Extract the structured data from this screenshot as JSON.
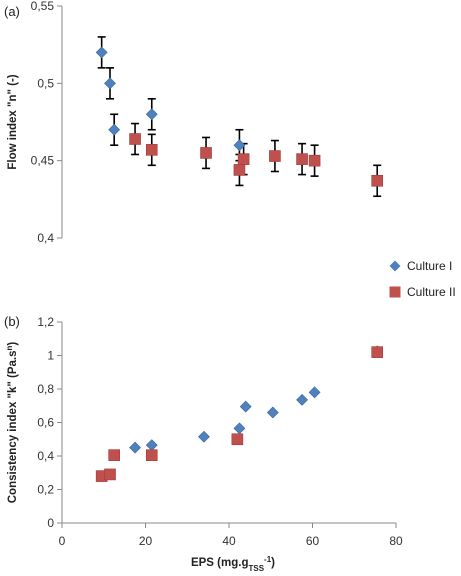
{
  "chart_data": [
    {
      "type": "scatter",
      "panel_label": "(a)",
      "ylabel": "Flow index \"n\" (-)",
      "ylim": [
        0.4,
        0.55
      ],
      "yticks": [
        "0,4",
        "0,45",
        "0,5",
        "0,55"
      ],
      "ytick_values": [
        0.4,
        0.45,
        0.5,
        0.55
      ],
      "xlim": [
        0,
        80
      ],
      "grid": false,
      "error_bars": true,
      "series": [
        {
          "name": "Culture I",
          "color": "#4f81bd",
          "marker": "diamond",
          "points": [
            {
              "x": 9.5,
              "y": 0.52,
              "err": 0.01
            },
            {
              "x": 11.5,
              "y": 0.5,
              "err": 0.01
            },
            {
              "x": 12.5,
              "y": 0.47,
              "err": 0.01
            },
            {
              "x": 21.5,
              "y": 0.48,
              "err": 0.01
            },
            {
              "x": 42.5,
              "y": 0.46,
              "err": 0.01
            }
          ]
        },
        {
          "name": "Culture II",
          "color": "#c0504d",
          "marker": "square",
          "points": [
            {
              "x": 17.5,
              "y": 0.464,
              "err": 0.01
            },
            {
              "x": 21.5,
              "y": 0.457,
              "err": 0.01
            },
            {
              "x": 34.5,
              "y": 0.455,
              "err": 0.01
            },
            {
              "x": 42.5,
              "y": 0.444,
              "err": 0.01
            },
            {
              "x": 43.5,
              "y": 0.451,
              "err": 0.01
            },
            {
              "x": 51.0,
              "y": 0.453,
              "err": 0.01
            },
            {
              "x": 57.5,
              "y": 0.451,
              "err": 0.01
            },
            {
              "x": 60.5,
              "y": 0.45,
              "err": 0.01
            },
            {
              "x": 75.5,
              "y": 0.437,
              "err": 0.01
            }
          ]
        }
      ]
    },
    {
      "type": "scatter",
      "panel_label": "(b)",
      "ylabel": "Consistency index \"k\" (Pa.s",
      "ylabel_sup": "n",
      "ylabel_tail": ")",
      "xlabel": "EPS (mg.g",
      "xlabel_sub": "TSS",
      "xlabel_sup": "-1",
      "xlabel_tail": ")",
      "ylim": [
        0,
        1.2
      ],
      "yticks": [
        "0",
        "0,2",
        "0,4",
        "0,6",
        "0,8",
        "1",
        "1,2"
      ],
      "ytick_values": [
        0,
        0.2,
        0.4,
        0.6,
        0.8,
        1.0,
        1.2
      ],
      "xlim": [
        0,
        80
      ],
      "xticks": [
        "0",
        "20",
        "40",
        "60",
        "80"
      ],
      "xtick_values": [
        0,
        20,
        40,
        60,
        80
      ],
      "grid": false,
      "series": [
        {
          "name": "Culture I",
          "color": "#4f81bd",
          "marker": "diamond",
          "points": [
            {
              "x": 17.5,
              "y": 0.45
            },
            {
              "x": 21.5,
              "y": 0.465
            },
            {
              "x": 34.0,
              "y": 0.515
            },
            {
              "x": 42.5,
              "y": 0.565
            },
            {
              "x": 44.0,
              "y": 0.695
            },
            {
              "x": 50.5,
              "y": 0.66
            },
            {
              "x": 57.5,
              "y": 0.735
            },
            {
              "x": 60.5,
              "y": 0.78
            },
            {
              "x": 75.5,
              "y": 1.025
            }
          ]
        },
        {
          "name": "Culture II",
          "color": "#c0504d",
          "marker": "square",
          "points": [
            {
              "x": 9.5,
              "y": 0.28
            },
            {
              "x": 11.5,
              "y": 0.29
            },
            {
              "x": 12.5,
              "y": 0.405
            },
            {
              "x": 21.5,
              "y": 0.405
            },
            {
              "x": 42.0,
              "y": 0.5
            },
            {
              "x": 75.5,
              "y": 1.02
            }
          ]
        }
      ]
    }
  ],
  "legend": {
    "placement": "right",
    "items": [
      {
        "label": "Culture I",
        "color": "#4f81bd",
        "marker": "diamond"
      },
      {
        "label": "Culture II",
        "color": "#c0504d",
        "marker": "square"
      }
    ]
  }
}
